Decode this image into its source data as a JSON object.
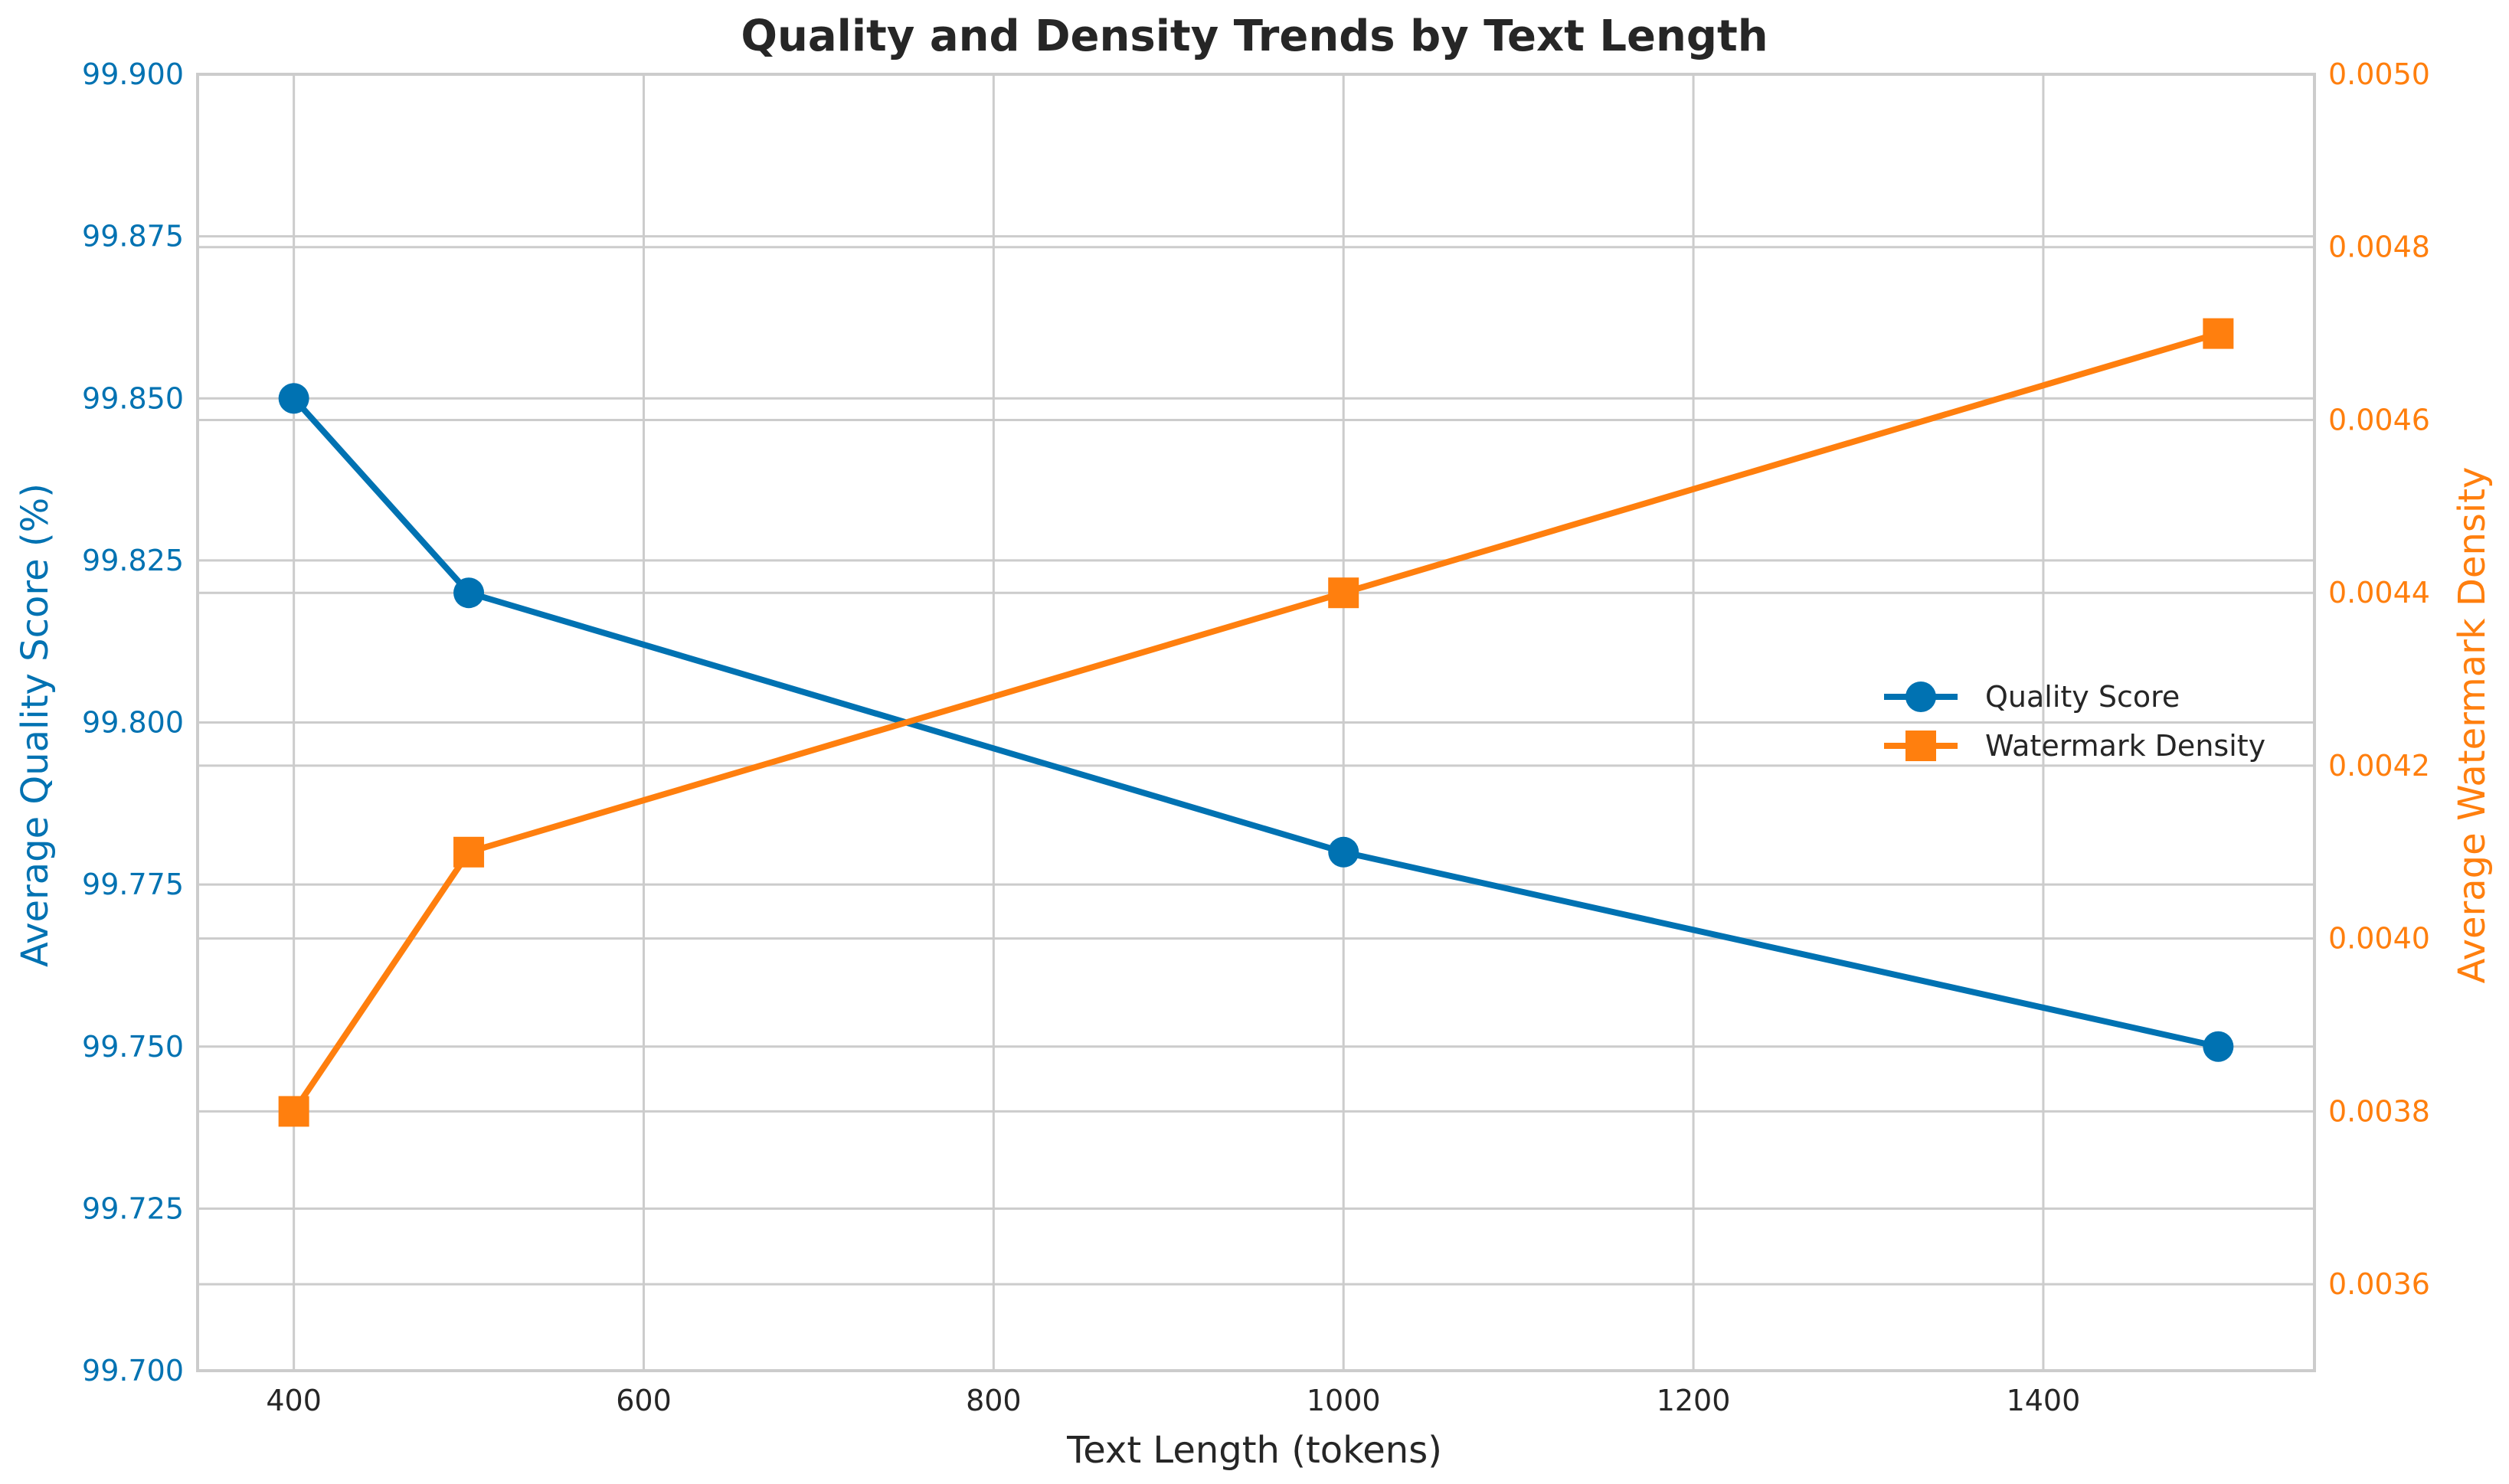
{
  "chart_data": {
    "type": "line",
    "title": "Quality and Density Trends by Text Length",
    "xlabel": "Text Length (tokens)",
    "ylabel_left": "Average Quality Score (%)",
    "ylabel_right": "Average Watermark Density",
    "x": [
      400,
      500,
      1000,
      1500
    ],
    "xlim": [
      345,
      1555
    ],
    "ylim_left": [
      99.7,
      99.9
    ],
    "ylim_right": [
      0.0035,
      0.005
    ],
    "xticks": [
      400,
      600,
      800,
      1000,
      1200,
      1400
    ],
    "yticks_left": [
      "99.700",
      "99.725",
      "99.750",
      "99.775",
      "99.800",
      "99.825",
      "99.850",
      "99.875",
      "99.900"
    ],
    "yticks_right": [
      "0.0036",
      "0.0038",
      "0.0040",
      "0.0042",
      "0.0044",
      "0.0046",
      "0.0048",
      "0.0050"
    ],
    "series": [
      {
        "name": "Quality Score",
        "axis": "left",
        "marker": "circle",
        "color": "#0072b2",
        "values": [
          99.85,
          99.82,
          99.78,
          99.75
        ]
      },
      {
        "name": "Watermark Density",
        "axis": "right",
        "marker": "square",
        "color": "#ff7f0e",
        "values": [
          0.0038,
          0.0041,
          0.0044,
          0.0047
        ]
      }
    ],
    "grid": true,
    "legend": "center-right"
  }
}
